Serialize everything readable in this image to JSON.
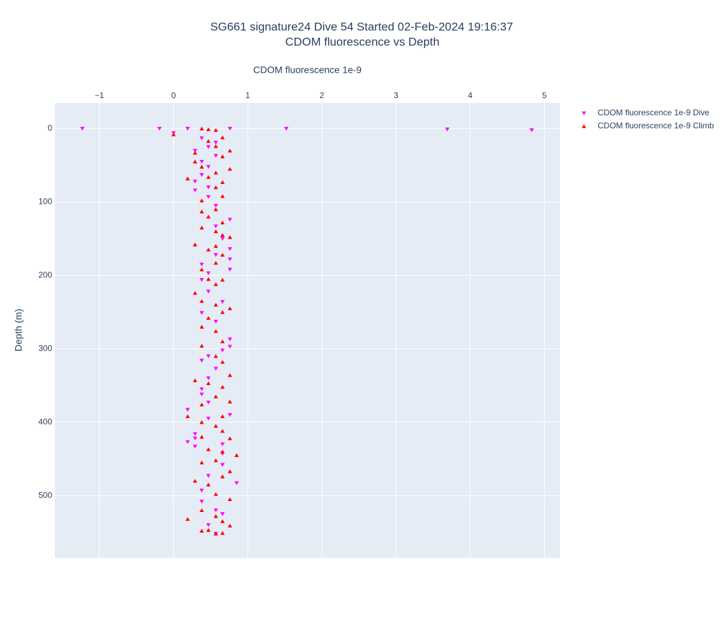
{
  "chart_data": {
    "type": "scatter",
    "title": "SG661 signature24 Dive 54 Started 02-Feb-2024 19:16:37",
    "subtitle": "CDOM fluorescence vs Depth",
    "x_label": "CDOM fluorescence 1e-9",
    "y_label": "Depth (m)",
    "xlim": [
      -1.6,
      5.21
    ],
    "ylim": [
      -35,
      585
    ],
    "y_reversed": true,
    "grid": true,
    "legend": "right",
    "xticks": [
      {
        "value": -1,
        "label": "−1"
      },
      0,
      1,
      2,
      3,
      4,
      5
    ],
    "yticks": [
      0,
      100,
      200,
      300,
      400,
      500
    ],
    "series": [
      {
        "name": "CDOM fluorescence 1e-9 Dive",
        "color": "#ff00ff",
        "marker": "triangle-down",
        "x": [
          -1.23,
          -0.19,
          0.19,
          0.76,
          1.52,
          3.69,
          4.83,
          0.0,
          0.38,
          0.57,
          0.47,
          0.29,
          0.57,
          0.38,
          0.47,
          0.38,
          0.29,
          0.47,
          0.29,
          0.47,
          0.57,
          0.76,
          0.57,
          0.66,
          0.76,
          0.57,
          0.76,
          0.38,
          0.76,
          0.47,
          0.38,
          0.47,
          0.66,
          0.38,
          0.57,
          0.76,
          0.76,
          0.66,
          0.47,
          0.38,
          0.57,
          0.47,
          0.38,
          0.38,
          0.47,
          0.76,
          0.19,
          0.47,
          0.29,
          0.29,
          0.19,
          0.29,
          0.66,
          0.66,
          0.66,
          0.85,
          0.47,
          0.38,
          0.57,
          0.38,
          0.66,
          0.47,
          0.57
        ],
        "y": [
          0,
          0,
          0,
          0,
          0,
          1,
          2,
          6,
          13,
          19,
          25,
          30,
          37,
          45,
          52,
          63,
          72,
          80,
          84,
          93,
          105,
          124,
          133,
          150,
          164,
          172,
          178,
          185,
          192,
          197,
          206,
          222,
          236,
          251,
          263,
          287,
          297,
          302,
          310,
          316,
          327,
          340,
          355,
          362,
          373,
          390,
          383,
          395,
          416,
          422,
          427,
          433,
          430,
          443,
          458,
          483,
          473,
          493,
          520,
          508,
          525,
          540,
          552
        ]
      },
      {
        "name": "CDOM fluorescence 1e-9 Climb",
        "color": "#ff0000",
        "marker": "triangle-up",
        "x": [
          0.0,
          0.38,
          0.47,
          0.57,
          0.66,
          0.47,
          0.57,
          0.76,
          0.29,
          0.66,
          0.29,
          0.38,
          0.76,
          0.57,
          0.19,
          0.47,
          0.66,
          0.57,
          0.38,
          0.66,
          0.57,
          0.38,
          0.47,
          0.66,
          0.38,
          0.57,
          0.76,
          0.66,
          0.29,
          0.57,
          0.47,
          0.66,
          0.57,
          0.38,
          0.66,
          0.47,
          0.57,
          0.29,
          0.38,
          0.57,
          0.76,
          0.66,
          0.47,
          0.38,
          0.57,
          0.66,
          0.38,
          0.57,
          0.66,
          0.76,
          0.29,
          0.47,
          0.66,
          0.57,
          0.76,
          0.38,
          0.19,
          0.66,
          0.38,
          0.57,
          0.66,
          0.38,
          0.76,
          0.47,
          0.66,
          0.85,
          0.38,
          0.57,
          0.76,
          0.66,
          0.29,
          0.47,
          0.76,
          0.57,
          0.38,
          0.19,
          0.66,
          0.57,
          0.47,
          0.76,
          0.38,
          0.57,
          0.66
        ],
        "y": [
          8,
          0,
          1,
          2,
          12,
          17,
          24,
          30,
          33,
          38,
          45,
          52,
          55,
          60,
          68,
          66,
          73,
          80,
          98,
          92,
          110,
          113,
          120,
          128,
          135,
          140,
          148,
          145,
          158,
          160,
          165,
          172,
          183,
          192,
          206,
          205,
          212,
          224,
          235,
          240,
          245,
          250,
          258,
          270,
          276,
          290,
          296,
          310,
          318,
          336,
          343,
          347,
          352,
          365,
          372,
          376,
          392,
          392,
          400,
          405,
          412,
          420,
          422,
          437,
          440,
          445,
          455,
          452,
          467,
          474,
          480,
          485,
          505,
          498,
          520,
          532,
          535,
          528,
          547,
          541,
          548,
          552,
          551
        ]
      }
    ]
  }
}
